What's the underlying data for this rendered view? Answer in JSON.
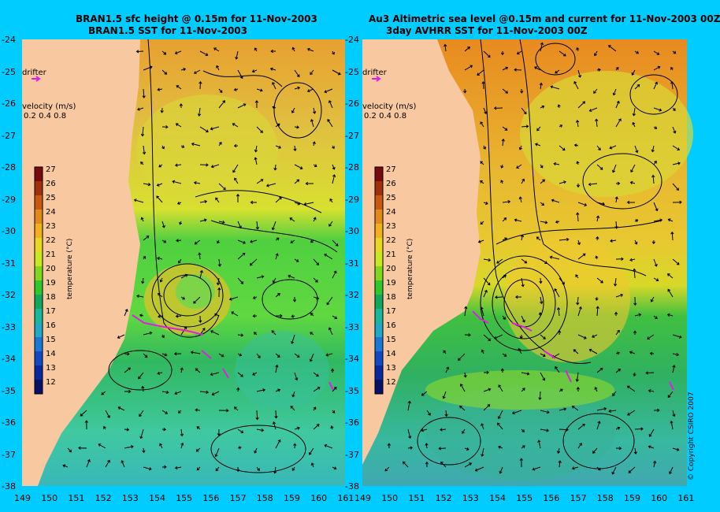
{
  "left_panel": {
    "title_line1": "BRAN1.5 sfc height @ 0.15m for 11-Nov-2003",
    "title_line2": "BRAN1.5 SST for 11-Nov-2003",
    "drifter_label": "drifter",
    "velocity_label": "velocity (m/s)",
    "velocity_scale": "0.2 0.4 0.8",
    "colorbar_axis_label": "temperature (°C)"
  },
  "right_panel": {
    "title_line1": "Au3 Altimetric sea level  @0.15m and current for 11-Nov-2003 00Z",
    "title_line2": "3day AVHRR SST for 11-Nov-2003 00Z",
    "drifter_label": "drifter",
    "velocity_label": "velocity (m/s)",
    "velocity_scale": "0.2 0.4 0.8",
    "colorbar_axis_label": "temperature (°C)"
  },
  "colorbar": {
    "ticks": [
      "27",
      "26",
      "25",
      "24",
      "23",
      "22",
      "21",
      "20",
      "19",
      "18",
      "17",
      "16",
      "15",
      "14",
      "13",
      "12"
    ],
    "colors": [
      "#7a0a0a",
      "#a0300a",
      "#c85a10",
      "#e08a1e",
      "#f0b020",
      "#e8d820",
      "#c8e820",
      "#7fd820",
      "#2cc82c",
      "#10a85a",
      "#18b89a",
      "#20a8c8",
      "#1878d8",
      "#1048c8",
      "#0828a0",
      "#08106a"
    ]
  },
  "y_axis_labels": [
    "-24",
    "-25",
    "-26",
    "-27",
    "-28",
    "-29",
    "-30",
    "-31",
    "-32",
    "-33",
    "-34",
    "-35",
    "-36",
    "-37",
    "-38"
  ],
  "x_axis_labels": [
    "149",
    "150",
    "151",
    "152",
    "153",
    "154",
    "155",
    "156",
    "157",
    "158",
    "159",
    "160",
    "161"
  ],
  "copyright": "© Copyright CSIRO 2007",
  "colors": {
    "background": "#00ccff",
    "land": "#f8c8a0",
    "drifter": "#e020e0"
  }
}
